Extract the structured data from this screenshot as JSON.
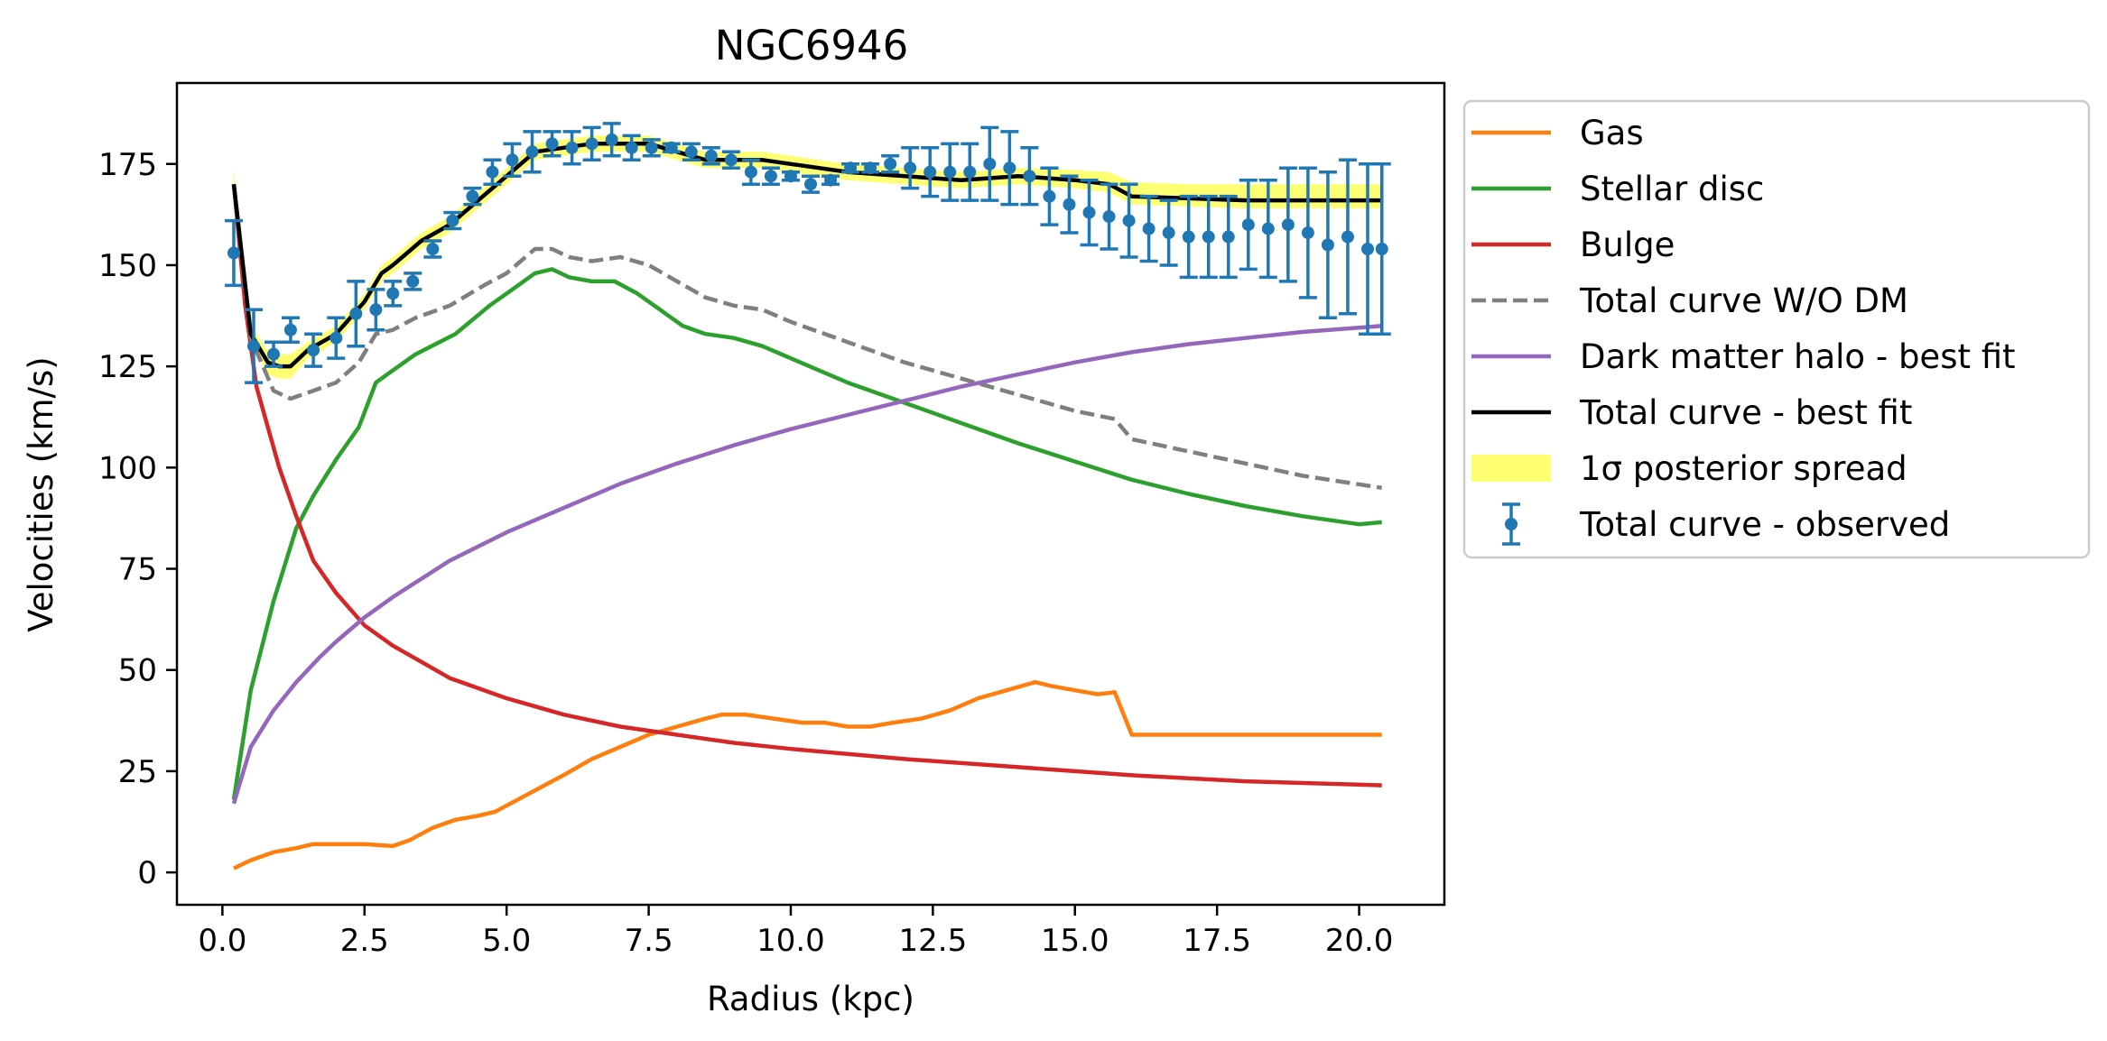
{
  "chart_data": {
    "type": "line",
    "title": "NGC6946",
    "xlabel": "Radius (kpc)",
    "ylabel": "Velocities (km/s)",
    "xlim": [
      -0.8,
      21.5
    ],
    "ylim": [
      -8,
      195
    ],
    "xticks": [
      0.0,
      2.5,
      5.0,
      7.5,
      10.0,
      12.5,
      15.0,
      17.5,
      20.0
    ],
    "xtick_labels": [
      "0.0",
      "2.5",
      "5.0",
      "7.5",
      "10.0",
      "12.5",
      "15.0",
      "17.5",
      "20.0"
    ],
    "yticks": [
      0,
      25,
      50,
      75,
      100,
      125,
      150,
      175
    ],
    "ytick_labels": [
      "0",
      "25",
      "50",
      "75",
      "100",
      "125",
      "150",
      "175"
    ],
    "grid": false,
    "legend_position": "outside-right",
    "series": [
      {
        "name": "Gas",
        "color": "#ff7f0e",
        "style": "solid",
        "x": [
          0.2,
          0.5,
          0.9,
          1.3,
          1.6,
          2.0,
          2.5,
          3.0,
          3.3,
          3.7,
          4.1,
          4.5,
          4.8,
          5.2,
          5.6,
          6.0,
          6.5,
          7.0,
          7.5,
          8.0,
          8.5,
          8.8,
          9.2,
          9.7,
          10.2,
          10.6,
          11.0,
          11.4,
          11.8,
          12.3,
          12.8,
          13.3,
          13.8,
          14.3,
          14.6,
          15.0,
          15.4,
          15.7,
          16.0,
          16.5,
          17.0,
          17.5,
          18.0,
          18.5,
          19.0,
          19.5,
          20.0,
          20.4
        ],
        "y": [
          1,
          3,
          5,
          6,
          7,
          7,
          7,
          6.5,
          8,
          11,
          13,
          14,
          15,
          18,
          21,
          24,
          28,
          31,
          34,
          36,
          38,
          39,
          39,
          38,
          37,
          37,
          36,
          36,
          37,
          38,
          40,
          43,
          45,
          47,
          46,
          45,
          44,
          44.5,
          34,
          34,
          34,
          34,
          34,
          34,
          34,
          34,
          34,
          34
        ]
      },
      {
        "name": "Stellar disc",
        "color": "#2ca02c",
        "style": "solid",
        "x": [
          0.2,
          0.5,
          0.9,
          1.3,
          1.6,
          2.0,
          2.4,
          2.7,
          3.0,
          3.4,
          4.1,
          4.7,
          5.1,
          5.5,
          5.8,
          6.1,
          6.5,
          6.9,
          7.3,
          7.7,
          8.1,
          8.5,
          9.0,
          9.5,
          10.0,
          11.0,
          12.0,
          13.0,
          14.0,
          15.0,
          16.0,
          17.0,
          18.0,
          19.0,
          20.0,
          20.4
        ],
        "y": [
          18,
          45,
          67,
          85,
          93,
          102,
          110,
          121,
          124,
          128,
          133,
          140,
          144,
          148,
          149,
          147,
          146,
          146,
          143,
          139,
          135,
          133,
          132,
          130,
          127,
          121,
          116,
          111,
          106,
          101.5,
          97,
          93.5,
          90.5,
          88,
          86,
          86.5
        ]
      },
      {
        "name": "Bulge",
        "color": "#d62728",
        "style": "solid",
        "x": [
          0.2,
          0.4,
          0.6,
          0.8,
          1.0,
          1.3,
          1.6,
          2.0,
          2.5,
          3.0,
          3.5,
          4.0,
          5.0,
          6.0,
          7.0,
          8.0,
          9.0,
          10.0,
          12.0,
          14.0,
          16.0,
          18.0,
          20.4
        ],
        "y": [
          170,
          140,
          120,
          110,
          100,
          88,
          77,
          69,
          61,
          56,
          52,
          48,
          43,
          39,
          36,
          34,
          32,
          30.5,
          28,
          26,
          24,
          22.5,
          21.5
        ]
      },
      {
        "name": "Total curve W/O DM",
        "color": "#7f7f7f",
        "style": "dashed",
        "x": [
          0.2,
          0.5,
          0.9,
          1.2,
          1.6,
          2.0,
          2.4,
          2.7,
          3.0,
          3.4,
          4.0,
          4.6,
          5.0,
          5.5,
          5.8,
          6.1,
          6.5,
          7.0,
          7.5,
          8.0,
          8.5,
          9.0,
          9.5,
          10.0,
          11.0,
          12.0,
          13.0,
          14.0,
          15.0,
          15.7,
          16.0,
          17.0,
          18.0,
          19.0,
          20.4
        ],
        "y": [
          170,
          132,
          119,
          117,
          119,
          121,
          126,
          133,
          134,
          137,
          140,
          145,
          148,
          154,
          154,
          152,
          151,
          152,
          150,
          146,
          142,
          140,
          139,
          136,
          131,
          126,
          122,
          118,
          114,
          112,
          107,
          104,
          101,
          98,
          95
        ]
      },
      {
        "name": "Dark matter halo - best fit",
        "color": "#9467bd",
        "style": "solid",
        "x": [
          0.2,
          0.5,
          0.9,
          1.3,
          1.7,
          2.0,
          2.5,
          3.0,
          4.0,
          5.0,
          6.0,
          7.0,
          8.0,
          9.0,
          10.0,
          11.0,
          12.0,
          13.0,
          14.0,
          15.0,
          16.0,
          17.0,
          18.0,
          19.0,
          20.4
        ],
        "y": [
          17,
          31,
          40,
          47,
          53,
          57,
          63,
          68,
          77,
          84,
          90,
          96,
          101,
          105.5,
          109.5,
          113,
          116.5,
          120,
          123,
          126,
          128.5,
          130.5,
          132,
          133.5,
          135
        ]
      },
      {
        "name": "Total curve - best fit",
        "color": "#000000",
        "style": "solid",
        "x": [
          0.2,
          0.5,
          0.8,
          1.0,
          1.2,
          1.5,
          2.0,
          2.5,
          2.8,
          3.0,
          3.5,
          4.0,
          4.5,
          5.0,
          5.5,
          6.0,
          6.5,
          7.0,
          7.5,
          8.0,
          8.5,
          9.0,
          9.5,
          10.0,
          11.0,
          12.0,
          13.0,
          14.0,
          15.0,
          15.6,
          16.0,
          17.0,
          18.0,
          19.0,
          20.4
        ],
        "y": [
          170,
          133,
          126,
          125,
          125,
          129,
          133,
          141,
          148,
          150,
          156,
          160,
          166,
          172,
          178,
          179,
          180,
          180,
          180,
          178,
          176,
          176,
          176,
          175,
          173,
          172,
          171,
          172,
          171,
          170,
          167,
          166.5,
          166,
          166,
          166
        ]
      }
    ],
    "band": {
      "name": "1σ posterior spread",
      "color": "#ffff00",
      "opacity": 0.55,
      "x": [
        0.2,
        0.5,
        0.8,
        1.0,
        1.2,
        1.5,
        2.0,
        2.5,
        2.8,
        3.0,
        3.5,
        4.0,
        4.5,
        5.0,
        5.5,
        6.0,
        6.5,
        7.0,
        7.5,
        8.0,
        8.5,
        9.0,
        9.5,
        10.0,
        11.0,
        12.0,
        13.0,
        14.0,
        15.0,
        15.6,
        16.0,
        17.0,
        18.0,
        19.0,
        20.4
      ],
      "lower": [
        166,
        131,
        123,
        122,
        122,
        127,
        131,
        139,
        146,
        148,
        154,
        158,
        164,
        170,
        176,
        177,
        178,
        178,
        178,
        176,
        174,
        174,
        174,
        173,
        171,
        170,
        169,
        170,
        169,
        168,
        165,
        164.5,
        164,
        164,
        164
      ],
      "upper": [
        174,
        135,
        129,
        128,
        128,
        131,
        135,
        143,
        150,
        152,
        158,
        162,
        168,
        174,
        180,
        181,
        182,
        182,
        182,
        180,
        178,
        178,
        178,
        177,
        175,
        174,
        173,
        174,
        173.5,
        173,
        170.5,
        170,
        170,
        170,
        170
      ]
    },
    "observed": {
      "name": "Total curve - observed",
      "color": "#1f77b4",
      "x": [
        0.2,
        0.55,
        0.9,
        1.2,
        1.6,
        2.0,
        2.35,
        2.7,
        3.0,
        3.35,
        3.7,
        4.05,
        4.4,
        4.75,
        5.1,
        5.45,
        5.8,
        6.15,
        6.5,
        6.85,
        7.2,
        7.55,
        7.9,
        8.25,
        8.6,
        8.95,
        9.3,
        9.65,
        10.0,
        10.35,
        10.7,
        11.05,
        11.4,
        11.75,
        12.1,
        12.45,
        12.8,
        13.15,
        13.5,
        13.85,
        14.2,
        14.55,
        14.9,
        15.25,
        15.6,
        15.95,
        16.3,
        16.65,
        17.0,
        17.35,
        17.7,
        18.05,
        18.4,
        18.75,
        19.1,
        19.45,
        19.8,
        20.15,
        20.4
      ],
      "y": [
        153,
        130,
        128,
        134,
        129,
        132,
        138,
        139,
        143,
        146,
        154,
        161,
        167,
        173,
        176,
        178,
        180,
        179,
        180,
        181,
        179,
        179,
        179,
        178,
        177,
        176,
        173,
        172,
        172,
        170,
        171,
        174,
        174,
        175,
        174,
        173,
        173,
        173,
        175,
        174,
        172,
        167,
        165,
        163,
        162,
        161,
        159,
        158,
        157,
        157,
        157,
        160,
        159,
        160,
        158,
        155,
        157,
        154,
        154
      ],
      "err": [
        8,
        9,
        3,
        3,
        4,
        5,
        8,
        5,
        3,
        2,
        2,
        2,
        2,
        3,
        4,
        5,
        3,
        4,
        4,
        4,
        3,
        2,
        1,
        2,
        2,
        2,
        3,
        2,
        1,
        2,
        1,
        1,
        1,
        2,
        5,
        6,
        7,
        7,
        9,
        9,
        7,
        7,
        7,
        8,
        8,
        9,
        8,
        8,
        10,
        10,
        10,
        11,
        12,
        14,
        16,
        18,
        19,
        21,
        21
      ]
    }
  }
}
